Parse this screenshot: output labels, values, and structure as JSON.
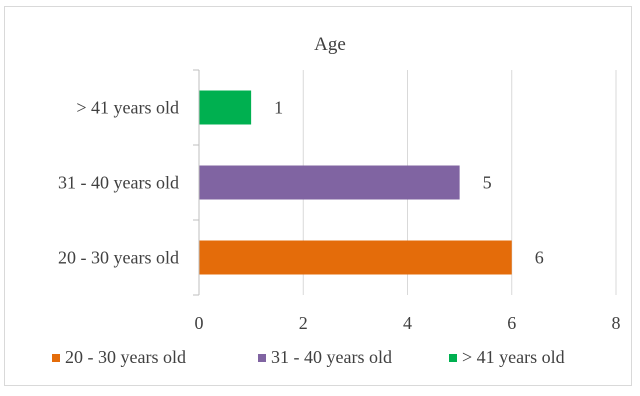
{
  "chart_data": {
    "type": "bar",
    "orientation": "horizontal",
    "title": "Age",
    "categories": [
      "20 - 30 years old",
      "31 - 40 years old",
      ">  41 years old"
    ],
    "values": [
      6,
      5,
      1
    ],
    "colors": [
      "#e46c0a",
      "#8064a2",
      "#00b050"
    ],
    "xlim": [
      0,
      8
    ],
    "xticks": [
      0,
      2,
      4,
      6,
      8
    ],
    "grid": "vertical",
    "legend": "bottom",
    "data_labels": true
  }
}
